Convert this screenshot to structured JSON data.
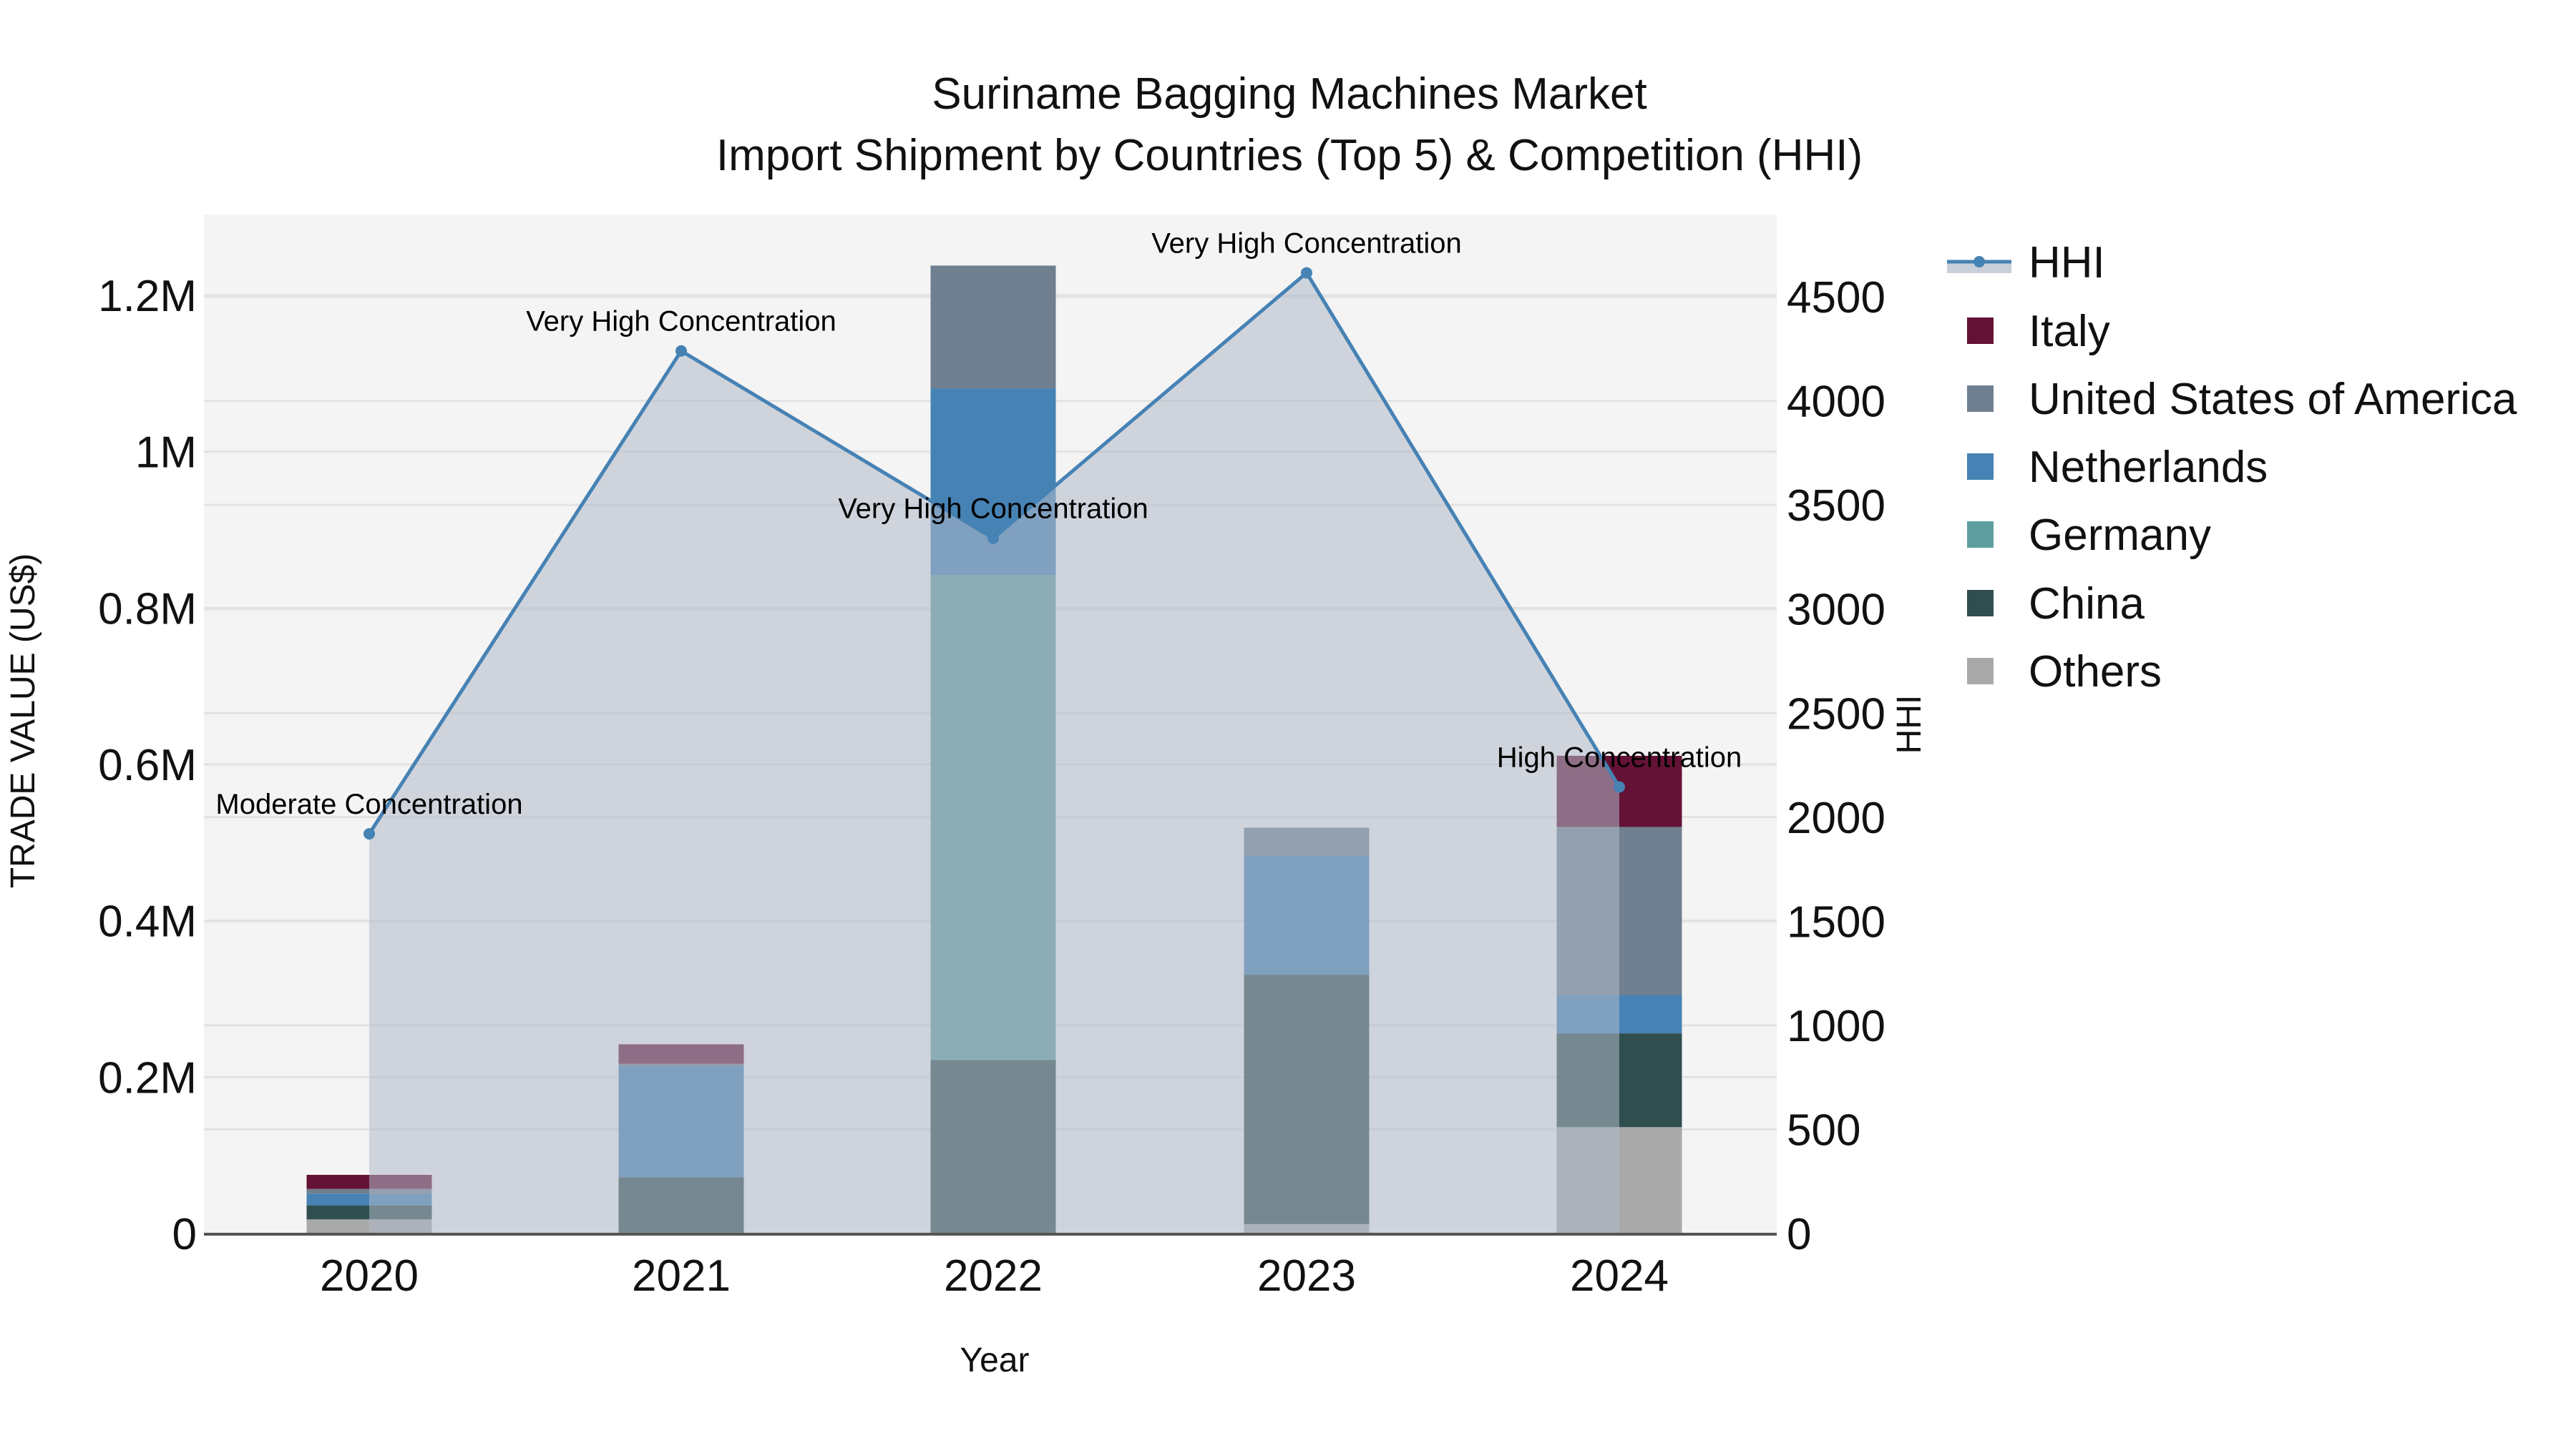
{
  "title": {
    "line1": "Suriname Bagging Machines Market",
    "line2": "Import Shipment by Countries (Top 5) & Competition (HHI)"
  },
  "axes": {
    "x_title": "Year",
    "y_left_title": "TRADE VALUE (US$)",
    "y_right_title": "HHI",
    "y_left_ticks": [
      {
        "value": 0,
        "label": "0"
      },
      {
        "value": 200000,
        "label": "0.2M"
      },
      {
        "value": 400000,
        "label": "0.4M"
      },
      {
        "value": 600000,
        "label": "0.6M"
      },
      {
        "value": 800000,
        "label": "0.8M"
      },
      {
        "value": 1000000,
        "label": "1M"
      },
      {
        "value": 1200000,
        "label": "1.2M"
      }
    ],
    "y_right_ticks": [
      {
        "value": 0,
        "label": "0"
      },
      {
        "value": 500,
        "label": "500"
      },
      {
        "value": 1000,
        "label": "1000"
      },
      {
        "value": 1500,
        "label": "1500"
      },
      {
        "value": 2000,
        "label": "2000"
      },
      {
        "value": 2500,
        "label": "2500"
      },
      {
        "value": 3000,
        "label": "3000"
      },
      {
        "value": 3500,
        "label": "3500"
      },
      {
        "value": 4000,
        "label": "4000"
      },
      {
        "value": 4500,
        "label": "4500"
      }
    ]
  },
  "legend": [
    {
      "key": "HHI",
      "label": "HHI",
      "color": "#4682b4",
      "type": "line"
    },
    {
      "key": "Italy",
      "label": "Italy",
      "color": "#641236",
      "type": "bar"
    },
    {
      "key": "USA",
      "label": "United States of America",
      "color": "#708090",
      "type": "bar"
    },
    {
      "key": "Netherlands",
      "label": "Netherlands",
      "color": "#4682b4",
      "type": "bar"
    },
    {
      "key": "Germany",
      "label": "Germany",
      "color": "#5f9ea0",
      "type": "bar"
    },
    {
      "key": "China",
      "label": "China",
      "color": "#2f4f4f",
      "type": "bar"
    },
    {
      "key": "Others",
      "label": "Others",
      "color": "#a9a9a9",
      "type": "bar"
    }
  ],
  "chart_data": {
    "type": "bar",
    "title": "Suriname Bagging Machines Market — Import Shipment by Countries (Top 5) & Competition (HHI)",
    "xlabel": "Year",
    "ylabel": "TRADE VALUE (US$)",
    "y2label": "HHI",
    "ylim": [
      0,
      1300000
    ],
    "y2lim": [
      0,
      4850
    ],
    "stacked": true,
    "grid": true,
    "legend_position": "right",
    "categories": [
      "2020",
      "2021",
      "2022",
      "2023",
      "2024"
    ],
    "series": [
      {
        "name": "Others",
        "color": "#a9a9a9",
        "values": [
          18000,
          1000,
          0,
          12000,
          136000
        ]
      },
      {
        "name": "China",
        "color": "#2f4f4f",
        "values": [
          18000,
          71000,
          222000,
          319000,
          120000
        ]
      },
      {
        "name": "Germany",
        "color": "#5f9ea0",
        "values": [
          0,
          0,
          620000,
          0,
          0
        ]
      },
      {
        "name": "Netherlands",
        "color": "#4682b4",
        "values": [
          15000,
          142000,
          239000,
          152000,
          49000
        ]
      },
      {
        "name": "United States of America",
        "color": "#708090",
        "values": [
          6000,
          3000,
          157000,
          36000,
          215000
        ]
      },
      {
        "name": "Italy",
        "color": "#641236",
        "values": [
          18000,
          25000,
          0,
          0,
          91000
        ]
      }
    ],
    "hhi": {
      "name": "HHI",
      "axis": "right",
      "type": "line+area",
      "color": "#4682b4",
      "values": [
        1920,
        4240,
        3340,
        4615,
        2145
      ],
      "annotations": [
        "Moderate Concentration",
        "Very High Concentration",
        "Very High Concentration",
        "Very High Concentration",
        "High Concentration"
      ]
    }
  }
}
